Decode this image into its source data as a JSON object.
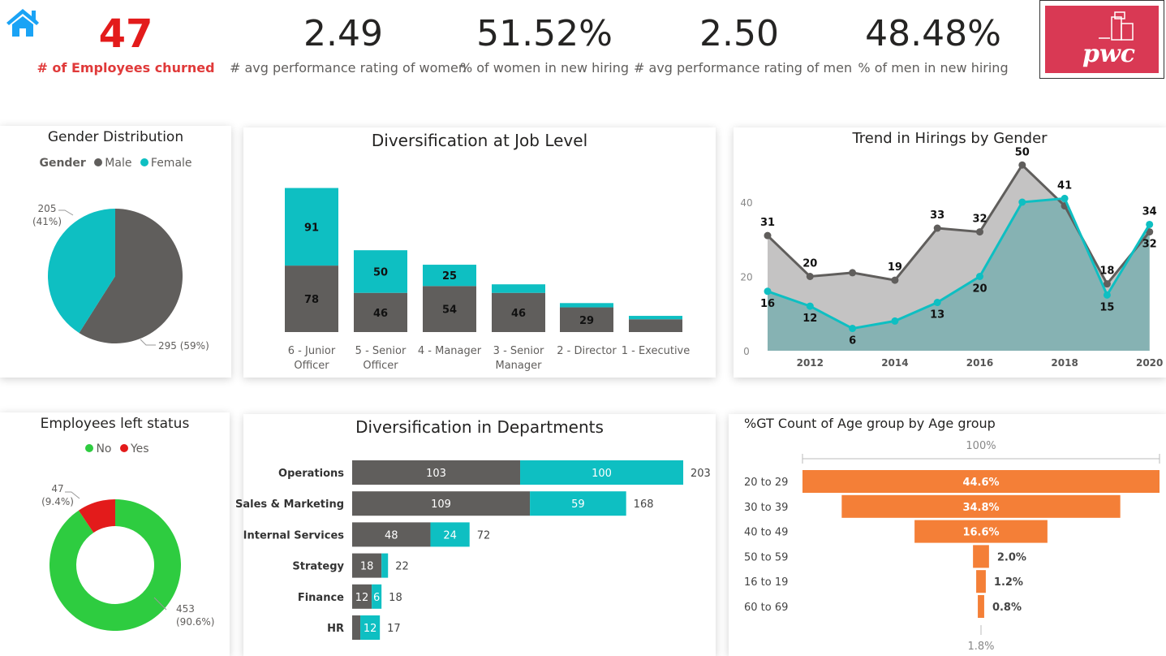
{
  "kpis": [
    {
      "value": "47",
      "label": "# of Employees churned"
    },
    {
      "value": "2.49",
      "label": "# avg performance rating of women"
    },
    {
      "value": "51.52%",
      "label": "% of women in new hiring"
    },
    {
      "value": "2.50",
      "label": "# avg performance rating of men"
    },
    {
      "value": "48.48%",
      "label": "% of men in new hiring"
    }
  ],
  "logo": {
    "text": "pwc",
    "color": "#d93954"
  },
  "icons": {
    "home": "home-icon"
  },
  "colors": {
    "male": "#605e5c",
    "female": "#0ebfc2",
    "no": "#2ecc40",
    "yes": "#e31b1b",
    "funnel": "#f47f37",
    "kpi_red": "#e31b1b",
    "home": "#1aa3f5"
  },
  "chart_data": [
    {
      "type": "pie",
      "title": "Gender Distribution",
      "legend_title": "Gender",
      "legend_position": "top",
      "slices": [
        {
          "name": "Male",
          "value": 295,
          "label": "295 (59%)"
        },
        {
          "name": "Female",
          "value": 205,
          "label": "205\n(41%)"
        }
      ]
    },
    {
      "type": "bar",
      "stacked": true,
      "title": "Diversification at Job Level",
      "categories": [
        "6 - Junior Officer",
        "5 - Senior Officer",
        "4 - Manager",
        "3 - Senior Manager",
        "2 - Director",
        "1 - Executive"
      ],
      "series": [
        {
          "values": [
            78,
            46,
            54,
            46,
            29,
            15
          ],
          "labels": [
            "78",
            "46",
            "54",
            "46",
            "29",
            ""
          ]
        },
        {
          "values": [
            91,
            50,
            25,
            10,
            5,
            4
          ],
          "labels": [
            "91",
            "50",
            "25",
            "",
            "",
            ""
          ]
        }
      ]
    },
    {
      "type": "area",
      "title": "Trend in Hirings by Gender",
      "x": [
        2011,
        2012,
        2013,
        2014,
        2015,
        2016,
        2017,
        2018,
        2019,
        2020
      ],
      "xticks": [
        "2012",
        "2014",
        "2016",
        "2018",
        "2020"
      ],
      "yticks": [
        "0",
        "20",
        "40"
      ],
      "ylim": [
        0,
        55
      ],
      "series": [
        {
          "values": [
            31,
            20,
            21,
            19,
            33,
            32,
            50,
            39,
            18,
            32
          ],
          "labels": [
            "31",
            "20",
            "",
            "19",
            "33",
            "32",
            "50",
            "",
            "18",
            "32"
          ]
        },
        {
          "values": [
            16,
            12,
            6,
            8,
            13,
            20,
            40,
            41,
            15,
            34
          ],
          "labels": [
            "16",
            "12",
            "6",
            "",
            "13",
            "20",
            "",
            "41",
            "15",
            "34"
          ]
        }
      ]
    },
    {
      "type": "pie",
      "donut": true,
      "title": "Employees left status",
      "legend_position": "top",
      "slices": [
        {
          "name": "No",
          "value": 453,
          "label": "453\n(90.6%)"
        },
        {
          "name": "Yes",
          "value": 47,
          "label": "47\n(9.4%)"
        }
      ]
    },
    {
      "type": "bar",
      "orientation": "horizontal",
      "stacked": true,
      "title": "Diversification in Departments",
      "categories": [
        "Operations",
        "Sales & Marketing",
        "Internal Services",
        "Strategy",
        "Finance",
        "HR"
      ],
      "series": [
        {
          "values": [
            103,
            109,
            48,
            18,
            12,
            5
          ],
          "labels": [
            "103",
            "109",
            "48",
            "18",
            "12",
            ""
          ]
        },
        {
          "values": [
            100,
            59,
            24,
            4,
            6,
            12
          ],
          "labels": [
            "100",
            "59",
            "24",
            "",
            "6",
            "12"
          ]
        }
      ],
      "totals": [
        203,
        168,
        72,
        22,
        18,
        17
      ]
    },
    {
      "type": "funnel",
      "title": "%GT Count of Age group by Age group",
      "top_label": "100%",
      "bottom_label": "1.8%",
      "categories": [
        "20 to 29",
        "30 to 39",
        "40 to 49",
        "50 to 59",
        "16 to 19",
        "60 to 69"
      ],
      "values": [
        44.6,
        34.8,
        16.6,
        2.0,
        1.2,
        0.8
      ],
      "labels": [
        "44.6%",
        "34.8%",
        "16.6%",
        "2.0%",
        "1.2%",
        "0.8%"
      ]
    }
  ]
}
